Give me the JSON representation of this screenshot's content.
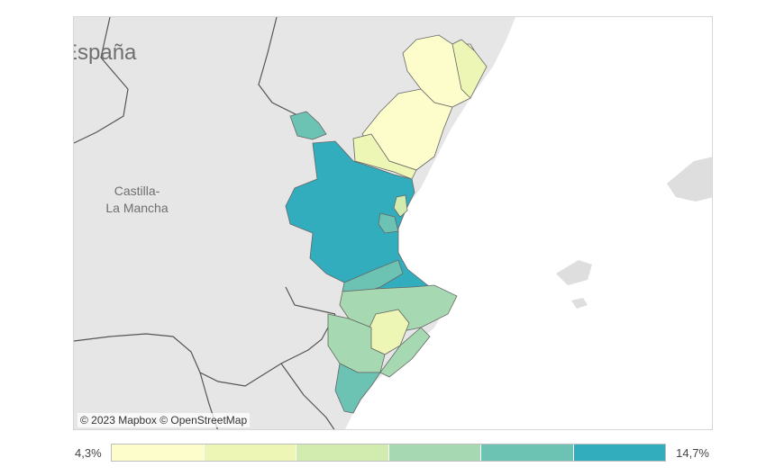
{
  "map": {
    "labels": {
      "country": "España",
      "region": "Castilla-\nLa Mancha"
    },
    "attribution": "© 2023 Mapbox  © OpenStreetMap",
    "colors": {
      "land": "#e6e6e6",
      "sea": "#ffffff",
      "border": "#444444",
      "c1": "#fdfdcc",
      "c2": "#edf6b5",
      "c3": "#d2ecb0",
      "c4": "#a6d9b1",
      "c5": "#6cc3b3",
      "c6": "#32adbd"
    }
  },
  "legend": {
    "min_label": "4,3%",
    "max_label": "14,7%",
    "steps": [
      "#fdfdcc",
      "#edf6b5",
      "#d2ecb0",
      "#a6d9b1",
      "#6cc3b3",
      "#32adbd"
    ]
  }
}
